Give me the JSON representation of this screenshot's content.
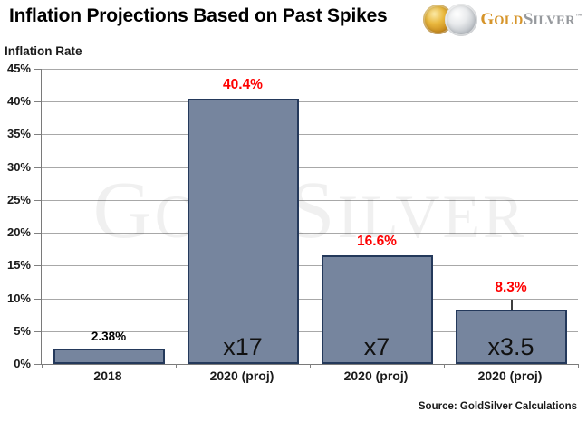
{
  "header": {
    "title": "Inflation Projections Based on Past Spikes",
    "logo": {
      "gold_initial": "G",
      "gold_rest": "OLD",
      "silver_initial": "S",
      "silver_rest": "ILVER",
      "trademark": "™",
      "gold_color": "#d6952b",
      "silver_color": "#96999d"
    }
  },
  "chart_data": {
    "type": "bar",
    "title": "Inflation Projections Based on Past Spikes",
    "ylabel": "Inflation Rate",
    "xlabel": "",
    "categories": [
      "2018",
      "2020 (proj)",
      "2020 (proj)",
      "2020 (proj)"
    ],
    "values": [
      2.38,
      40.4,
      16.6,
      8.3
    ],
    "value_labels": [
      "2.38%",
      "40.4%",
      "16.6%",
      "8.3%"
    ],
    "value_label_colors": [
      "#000000",
      "#fe0000",
      "#fe0000",
      "#fe0000"
    ],
    "value_label_sizes": [
      13.5,
      15.5,
      15.5,
      15.5
    ],
    "value_label_callout": [
      false,
      false,
      false,
      true
    ],
    "inner_labels": [
      "",
      "x17",
      "x7",
      "x3.5"
    ],
    "ylim": [
      0,
      45
    ],
    "ytick_step": 5,
    "yticks": [
      "45%",
      "40%",
      "35%",
      "30%",
      "25%",
      "20%",
      "15%",
      "10%",
      "5%",
      "0%"
    ],
    "grid": true,
    "legend": false,
    "bar_color": "#76859e",
    "bar_border_color": "#24395b",
    "grid_color": "#a8a8a8"
  },
  "watermark": {
    "gold_initial": "G",
    "gold_rest": "OLD",
    "silver_initial": "S",
    "silver_rest": "ILVER"
  },
  "footer": {
    "source": "Source: GoldSilver Calculations"
  }
}
